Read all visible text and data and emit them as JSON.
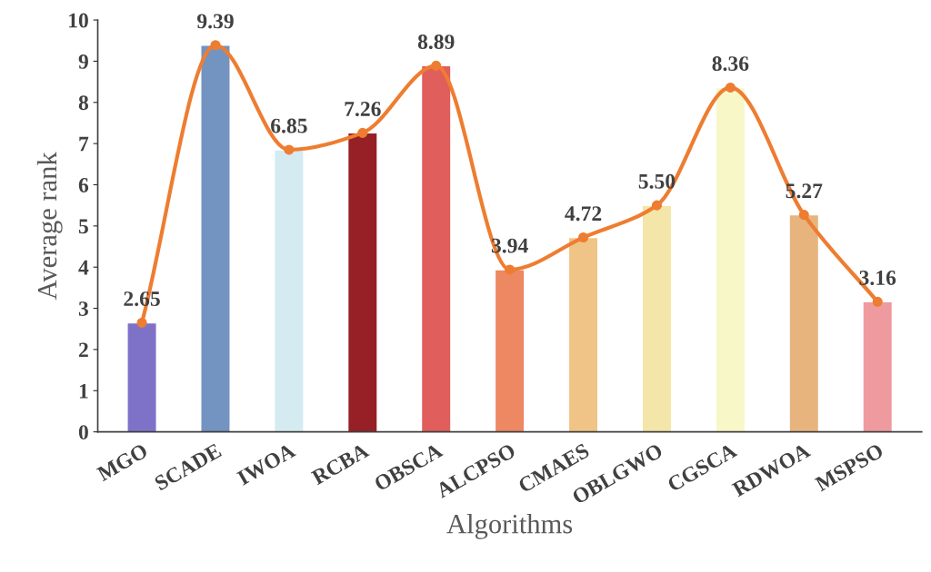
{
  "chart_data": {
    "type": "bar",
    "xlabel": "Algorithms",
    "ylabel": "Average rank",
    "categories": [
      "MGO",
      "SCADE",
      "IWOA",
      "RCBA",
      "OBSCA",
      "ALCPSO",
      "CMAES",
      "OBLGWO",
      "CGSCA",
      "RDWOA",
      "MSPSO"
    ],
    "series": [
      {
        "colors": [
          "#7e72c8",
          "#7393c0",
          "#d4ebf2",
          "#962026",
          "#e05e5c",
          "#ed8862",
          "#f0c386",
          "#f3e6a8",
          "#f7f7c8",
          "#e8b47e",
          "#ee9a9e"
        ],
        "values": [
          2.65,
          9.39,
          6.85,
          7.26,
          8.89,
          3.94,
          4.72,
          5.5,
          8.36,
          5.27,
          3.16
        ],
        "value_labels": [
          "2.65",
          "9.39",
          "6.85",
          "7.26",
          "8.89",
          "3.94",
          "4.72",
          "5.50",
          "8.36",
          "5.27",
          "3.16"
        ]
      },
      {
        "type": "line",
        "color": "#ee7d31",
        "marker": "circle",
        "values": [
          2.65,
          9.39,
          6.85,
          7.26,
          8.89,
          3.94,
          4.72,
          5.5,
          8.36,
          5.27,
          3.16
        ]
      }
    ],
    "ylim": [
      0,
      10
    ],
    "yticks": [
      0,
      1,
      2,
      3,
      4,
      5,
      6,
      7,
      8,
      9,
      10
    ],
    "grid": false,
    "legend": false
  }
}
